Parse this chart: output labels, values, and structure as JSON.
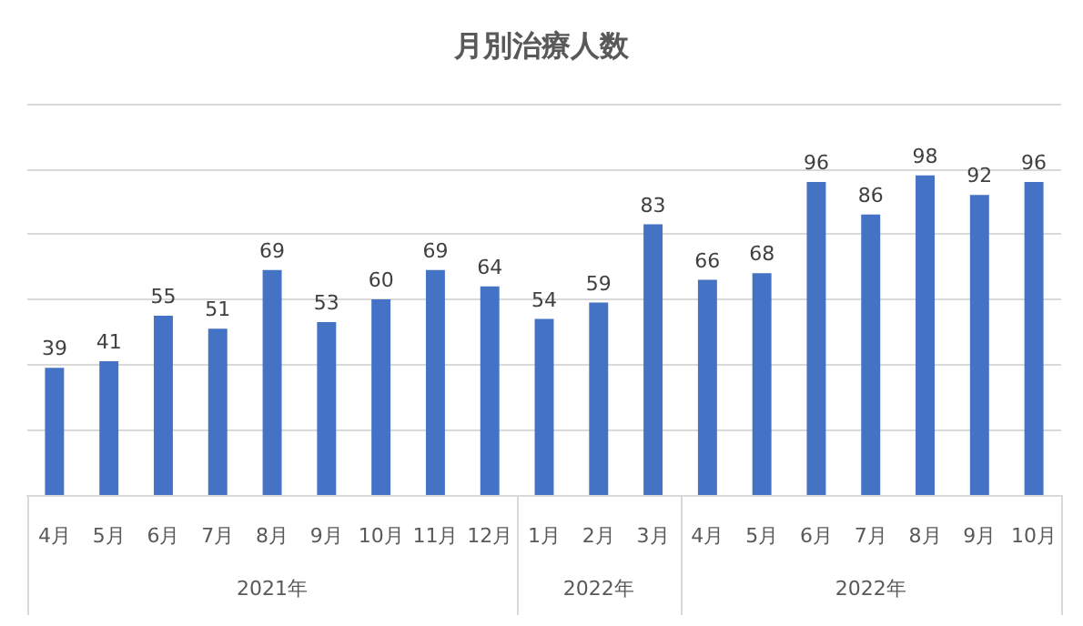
{
  "chart_data": {
    "type": "bar",
    "title": "月別治療人数",
    "categories": [
      "4月",
      "5月",
      "6月",
      "7月",
      "8月",
      "9月",
      "10月",
      "11月",
      "12月",
      "1月",
      "2月",
      "3月",
      "4月",
      "5月",
      "6月",
      "7月",
      "8月",
      "9月",
      "10月"
    ],
    "values": [
      39,
      41,
      55,
      51,
      69,
      53,
      60,
      69,
      64,
      54,
      59,
      83,
      66,
      68,
      96,
      86,
      98,
      92,
      96
    ],
    "color": "#4472c4",
    "ylim": [
      0,
      120
    ],
    "yticks": [
      {
        "value": 0,
        "label": null
      },
      {
        "value": 20,
        "label": null
      },
      {
        "value": 40,
        "label": null
      },
      {
        "value": 60,
        "label": null
      },
      {
        "value": 80,
        "label": null
      },
      {
        "value": 100,
        "label": null
      },
      {
        "value": 120,
        "label": null
      }
    ],
    "tick_labels": "x",
    "grid": "y",
    "data_labels": true,
    "annotations": [
      "2021年",
      "2022年",
      "2022年"
    ]
  }
}
